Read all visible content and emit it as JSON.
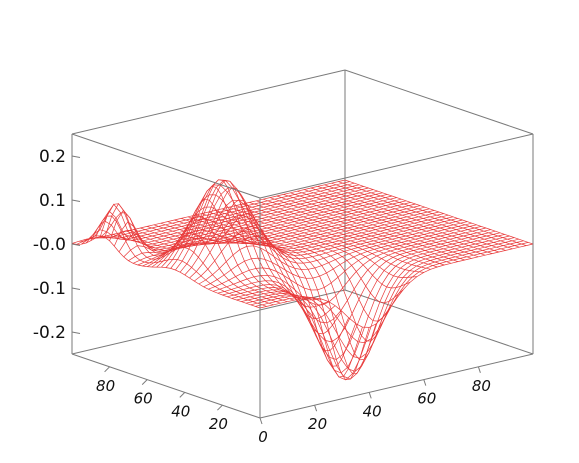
{
  "chart_data": {
    "type": "surface",
    "title": "",
    "xlabel": "",
    "ylabel": "",
    "zlabel": "",
    "x_ticks": [
      "0",
      "20",
      "40",
      "60",
      "80"
    ],
    "y_ticks": [
      "20",
      "40",
      "60",
      "80"
    ],
    "z_ticks": [
      "0.2",
      "0.1",
      "-0.0",
      "-0.1",
      "-0.2"
    ],
    "xlim": [
      0,
      100
    ],
    "ylim": [
      0,
      100
    ],
    "zlim": [
      -0.25,
      0.25
    ],
    "grid": false,
    "wireframe": true,
    "grid_resolution": 40,
    "surface_features": [
      {
        "kind": "peak",
        "x": 5,
        "y": 83,
        "z": 0.11
      },
      {
        "kind": "peak",
        "x": 18,
        "y": 46,
        "z": 0.2
      },
      {
        "kind": "trough",
        "x": 40,
        "y": 12,
        "z": -0.24
      }
    ],
    "colors": {
      "mesh": "#e83a3a",
      "box": "#7a7a7a",
      "text": "#111111"
    }
  }
}
